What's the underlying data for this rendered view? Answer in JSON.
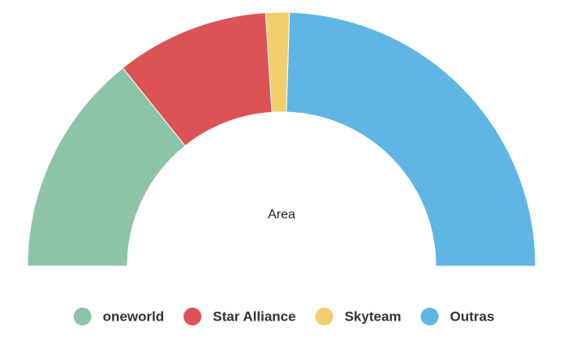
{
  "chart_data": {
    "type": "pie",
    "title": "Area",
    "categories": [
      "oneworld",
      "Star Alliance",
      "Skyteam",
      "Outras"
    ],
    "values": [
      28.5,
      19.5,
      3,
      49
    ],
    "colors": [
      "#8dc3a7",
      "#dc5356",
      "#f2ce6c",
      "#5fb6e5"
    ]
  }
}
